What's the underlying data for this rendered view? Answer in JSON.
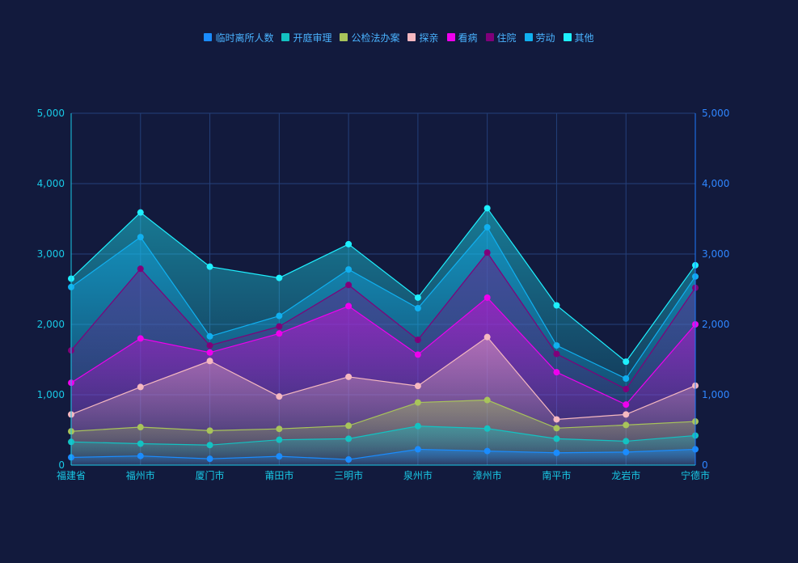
{
  "chart_data": {
    "type": "area",
    "categories": [
      "福建省",
      "福州市",
      "厦门市",
      "莆田市",
      "三明市",
      "泉州市",
      "漳州市",
      "南平市",
      "龙岩市",
      "宁德市"
    ],
    "ylim": [
      0,
      5000
    ],
    "yticks": [
      "0",
      "1,000",
      "2,000",
      "3,000",
      "4,000",
      "5,000"
    ],
    "ytick_values": [
      0,
      1000,
      2000,
      3000,
      4000,
      5000
    ],
    "stacked": false,
    "grid": true,
    "legend_position": "top-center",
    "series": [
      {
        "name": "临时离所人数",
        "color": "#1a8cff",
        "values": [
          110,
          130,
          90,
          125,
          80,
          225,
          200,
          175,
          185,
          225
        ]
      },
      {
        "name": "开庭审理",
        "color": "#13c2c2",
        "values": [
          330,
          305,
          285,
          360,
          375,
          555,
          520,
          375,
          340,
          420
        ]
      },
      {
        "name": "公检法办案",
        "color": "#a8c45a",
        "values": [
          480,
          540,
          490,
          515,
          560,
          890,
          925,
          525,
          570,
          620
        ]
      },
      {
        "name": "探亲",
        "color": "#f5b8c0",
        "values": [
          720,
          1110,
          1480,
          975,
          1255,
          1125,
          1820,
          650,
          720,
          1130
        ]
      },
      {
        "name": "看病",
        "color": "#ee00ee",
        "values": [
          1170,
          1800,
          1600,
          1870,
          2260,
          1570,
          2380,
          1320,
          860,
          2000
        ]
      },
      {
        "name": "住院",
        "color": "#80007a",
        "values": [
          1630,
          2790,
          1700,
          1970,
          2560,
          1780,
          3020,
          1580,
          1080,
          2520
        ]
      },
      {
        "name": "劳动",
        "color": "#10b0f0",
        "values": [
          2530,
          3240,
          1830,
          2120,
          2780,
          2230,
          3380,
          1700,
          1230,
          2680
        ]
      },
      {
        "name": "其他",
        "color": "#1ef0ff",
        "values": [
          2650,
          3590,
          2820,
          2660,
          3140,
          2380,
          3650,
          2270,
          1470,
          2840
        ]
      }
    ]
  }
}
